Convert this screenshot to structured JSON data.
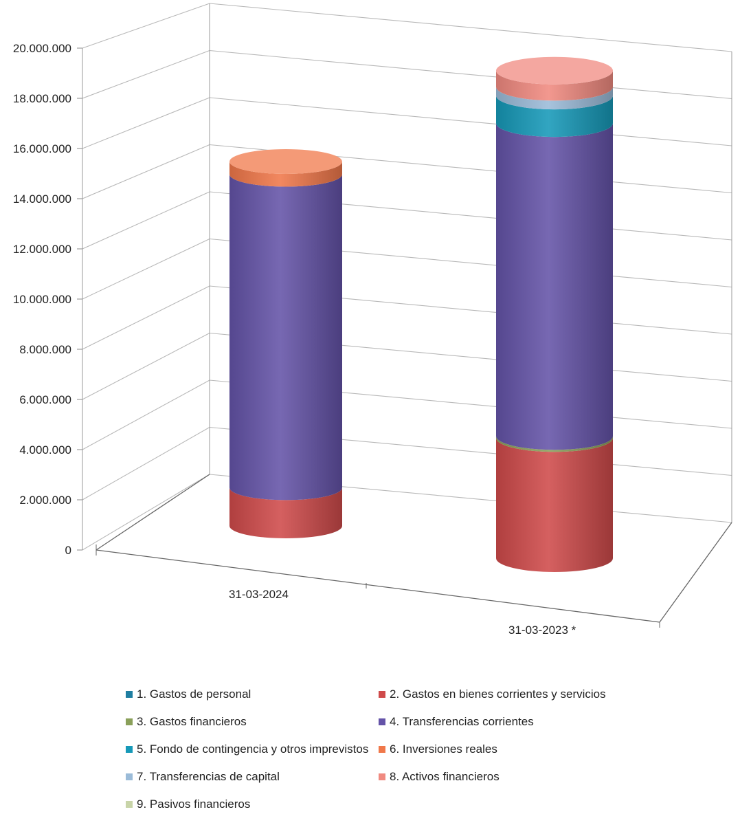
{
  "chart_data": {
    "type": "bar",
    "stacked": true,
    "style": "3d-cylinder",
    "categories": [
      "31-03-2024",
      "31-03-2023 *"
    ],
    "ylim": [
      0,
      20000000
    ],
    "yticks": [
      "0",
      "2.000.000",
      "4.000.000",
      "6.000.000",
      "8.000.000",
      "10.000.000",
      "12.000.000",
      "14.000.000",
      "16.000.000",
      "18.000.000",
      "20.000.000"
    ],
    "grid": true,
    "legend_position": "bottom",
    "series": [
      {
        "name": "1. Gastos de personal",
        "color": "#1f7ea1",
        "values": [
          0,
          0
        ]
      },
      {
        "name": "2. Gastos en bienes corrientes y servicios",
        "color": "#cf4a4a",
        "values": [
          1500000,
          4800000
        ]
      },
      {
        "name": "3. Gastos financieros",
        "color": "#8aa05a",
        "values": [
          0,
          80000
        ]
      },
      {
        "name": "4. Transferencias corrientes",
        "color": "#6453a8",
        "values": [
          12300000,
          12500000
        ]
      },
      {
        "name": "5. Fondo de contingencia y otros imprevistos",
        "color": "#1699b8",
        "values": [
          0,
          1100000
        ]
      },
      {
        "name": "6. Inversiones reales",
        "color": "#f0784a",
        "values": [
          500000,
          0
        ]
      },
      {
        "name": "7. Transferencias de capital",
        "color": "#9bbbd8",
        "values": [
          0,
          350000
        ]
      },
      {
        "name": "8. Activos financieros",
        "color": "#f08a80",
        "values": [
          0,
          650000
        ]
      },
      {
        "name": "9. Pasivos financieros",
        "color": "#c8d4a8",
        "values": [
          0,
          0
        ]
      }
    ]
  }
}
